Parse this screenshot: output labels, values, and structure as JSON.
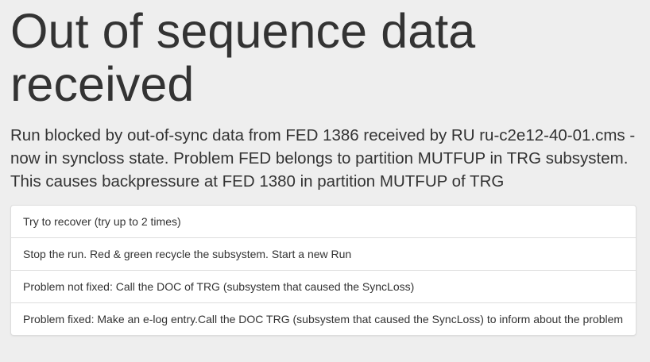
{
  "page": {
    "title": "Out of sequence data received",
    "description": "Run blocked by out-of-sync data from FED 1386 received by RU ru-c2e12-40-01.cms - now in syncloss state. Problem FED belongs to partition MUTFUP in TRG subsystem. This causes backpressure at FED 1380 in partition MUTFUP of TRG"
  },
  "actions": [
    {
      "label": "Try to recover (try up to 2 times)"
    },
    {
      "label": "Stop the run. Red & green recycle the subsystem. Start a new Run"
    },
    {
      "label": "Problem not fixed: Call the DOC of TRG (subsystem that caused the SyncLoss)"
    },
    {
      "label": "Problem fixed: Make an e-log entry.Call the DOC TRG (subsystem that caused the SyncLoss) to inform about the problem"
    }
  ]
}
